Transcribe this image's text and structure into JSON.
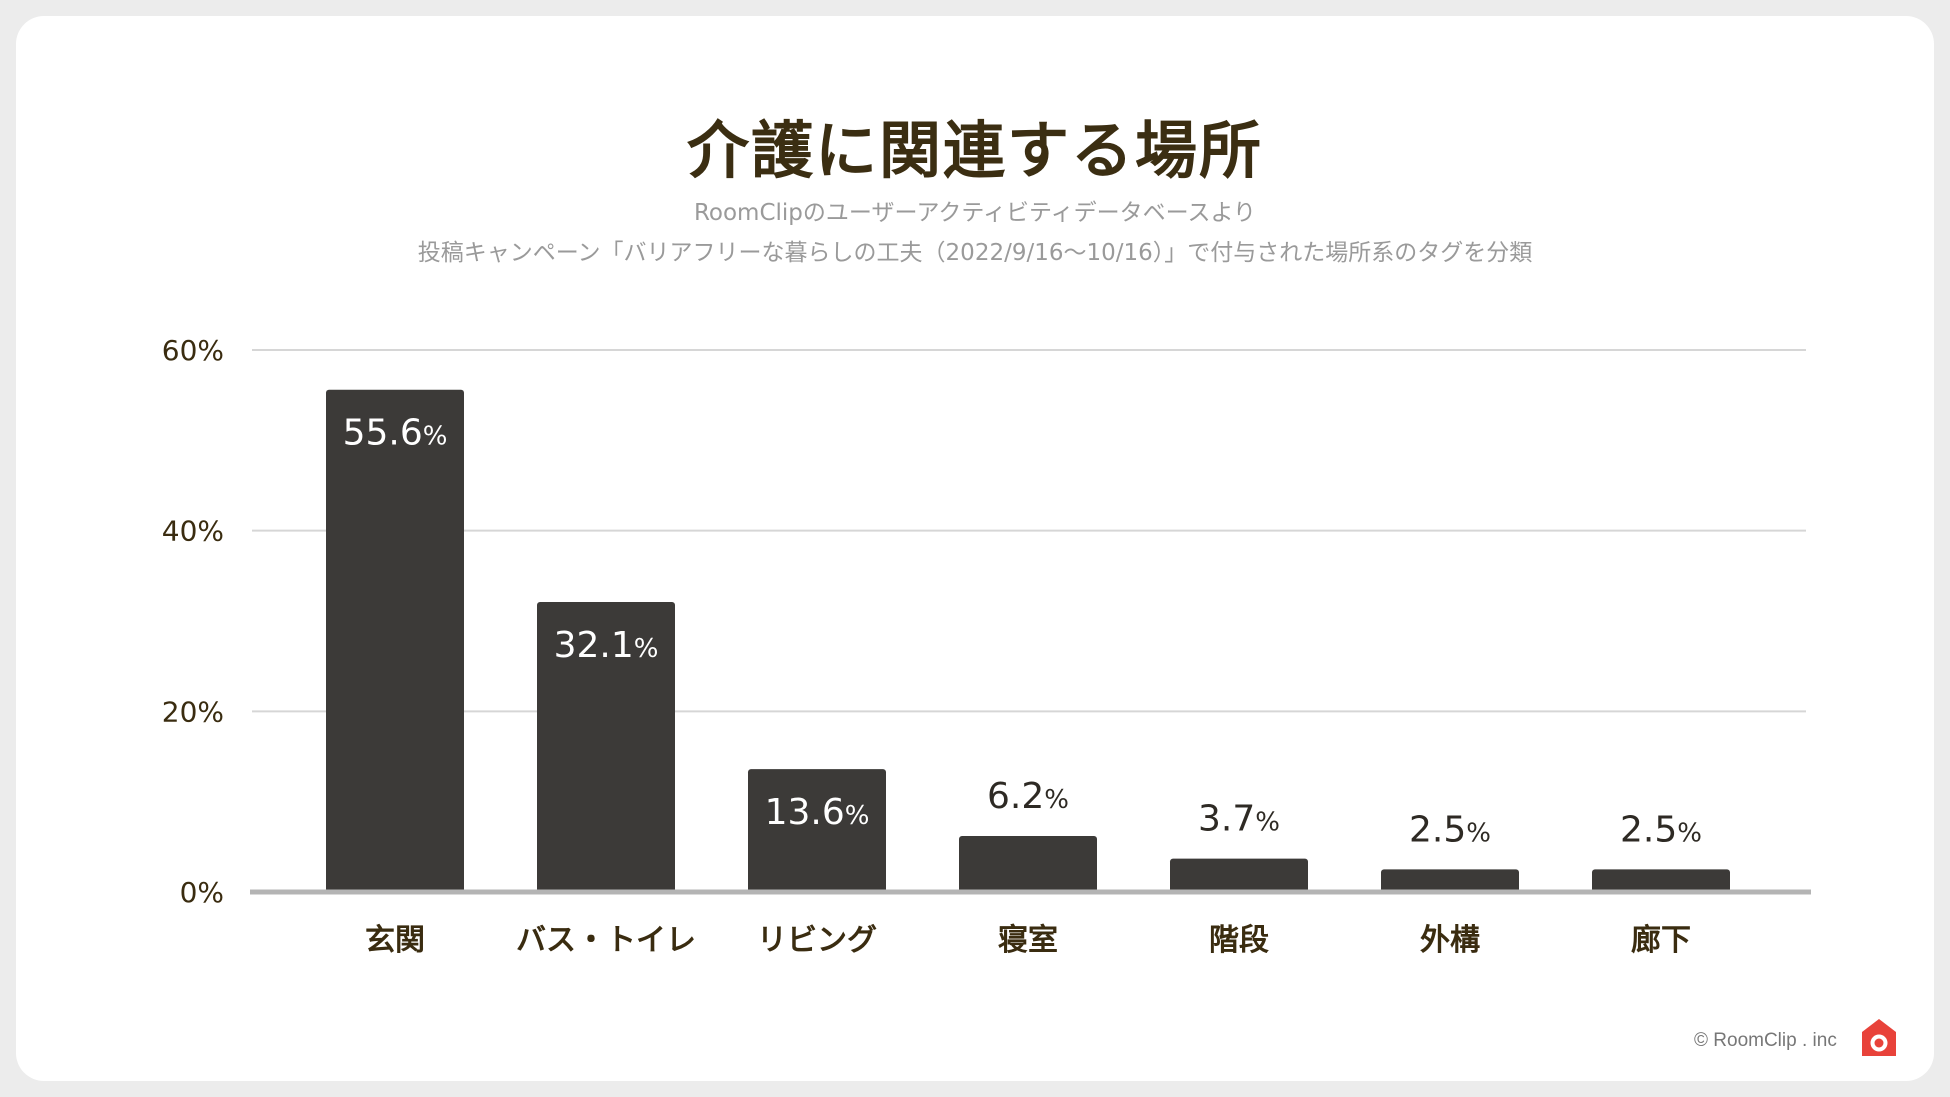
{
  "chart_data": {
    "type": "bar",
    "title": "介護に関連する場所",
    "subtitle_lines": [
      "RoomClipのユーザーアクティビティデータベースより",
      "投稿キャンペーン「バリアフリーな暮らしの工夫（2022/9/16〜10/16）」で付与された場所系のタグを分類"
    ],
    "categories": [
      "玄関",
      "バス・トイレ",
      "リビング",
      "寝室",
      "階段",
      "外構",
      "廊下"
    ],
    "values": [
      55.6,
      32.1,
      13.6,
      6.2,
      3.7,
      2.5,
      2.5
    ],
    "value_labels": [
      "55.6",
      "32.1",
      "13.6",
      "6.2",
      "3.7",
      "2.5",
      "2.5"
    ],
    "value_unit": "%",
    "ylim": [
      0,
      60
    ],
    "yticks": [
      0,
      20,
      40,
      60
    ],
    "ytick_labels": [
      "0%",
      "20%",
      "40%",
      "60%"
    ],
    "grid": true,
    "legend": "none",
    "xlabel": "",
    "ylabel": "",
    "colors": {
      "bar": "#3c3a38",
      "grid": "#d6d6d6",
      "axis": "#b4b4b4",
      "title": "#3b2e12",
      "label": "#3a2c10"
    }
  },
  "credit": "© RoomClip . inc",
  "logo_icon": "roomclip-house-camera-icon"
}
